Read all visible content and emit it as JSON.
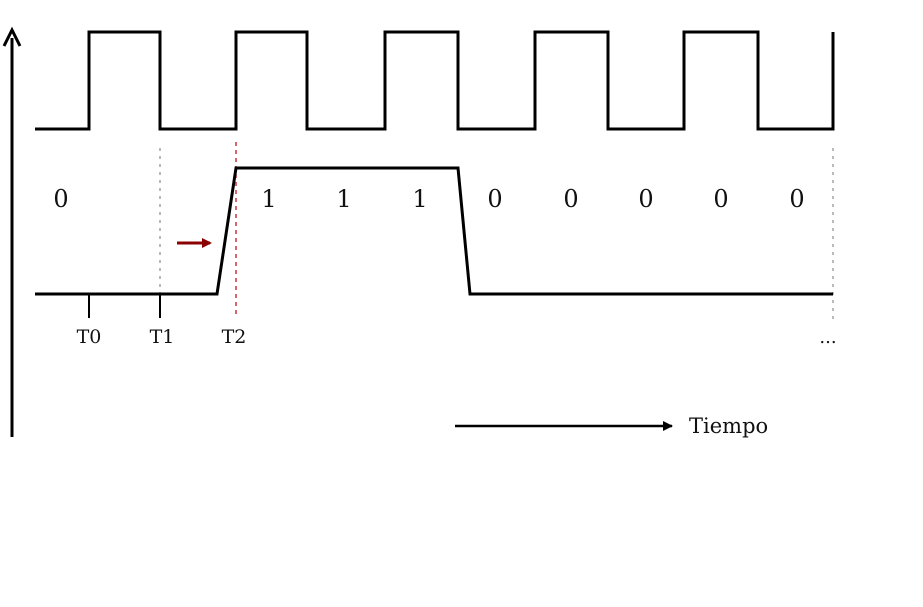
{
  "diagram": {
    "bits": [
      "0",
      "1",
      "1",
      "1",
      "0",
      "0",
      "0",
      "0"
    ],
    "tick_labels": [
      "T0",
      "T1",
      "T2"
    ],
    "time_axis_label": "Tiempo",
    "ellipsis": "...",
    "colors": {
      "line": "#000000",
      "guide_dotted": "#bbbbbb",
      "guide_dashed": "#cc3333",
      "arrow_red": "#8b0000"
    }
  }
}
